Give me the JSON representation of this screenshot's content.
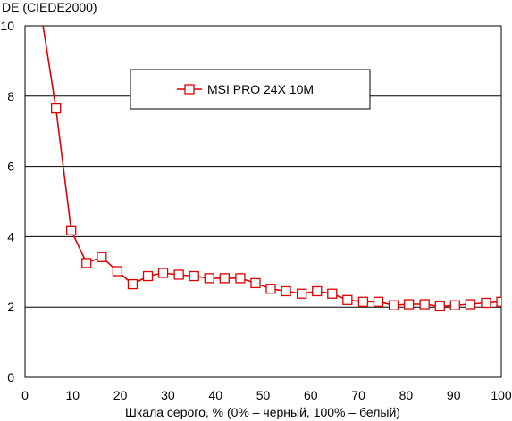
{
  "chart_data": {
    "type": "line",
    "title": "",
    "ylabel": "DE (CIEDE2000)",
    "xlabel": "Шкала серого, % (0% – черный, 100% – белый)",
    "xlim": [
      0,
      100
    ],
    "ylim": [
      0,
      10
    ],
    "x_ticks": [
      0,
      10,
      20,
      30,
      40,
      50,
      60,
      70,
      80,
      90,
      100
    ],
    "y_ticks": [
      0,
      2,
      4,
      6,
      8,
      10
    ],
    "grid": "horizontal",
    "legend_position": "top-center",
    "series": [
      {
        "name": "MSI PRO 24X 10M",
        "color": "#e00000",
        "marker": "open-square",
        "x": [
          3.2,
          6.5,
          9.7,
          12.9,
          16.1,
          19.4,
          22.6,
          25.8,
          29.0,
          32.3,
          35.5,
          38.7,
          41.9,
          45.2,
          48.4,
          51.6,
          54.8,
          58.1,
          61.3,
          64.5,
          67.7,
          71.0,
          74.2,
          77.4,
          80.6,
          83.9,
          87.1,
          90.3,
          93.5,
          96.8,
          100
        ],
        "y": [
          10.5,
          7.65,
          4.18,
          3.25,
          3.42,
          3.02,
          2.65,
          2.88,
          2.97,
          2.92,
          2.88,
          2.82,
          2.82,
          2.82,
          2.68,
          2.52,
          2.45,
          2.38,
          2.45,
          2.38,
          2.2,
          2.15,
          2.15,
          2.05,
          2.08,
          2.08,
          2.02,
          2.05,
          2.08,
          2.12,
          2.15
        ],
        "x_has_marker_from": 6.5
      }
    ]
  }
}
